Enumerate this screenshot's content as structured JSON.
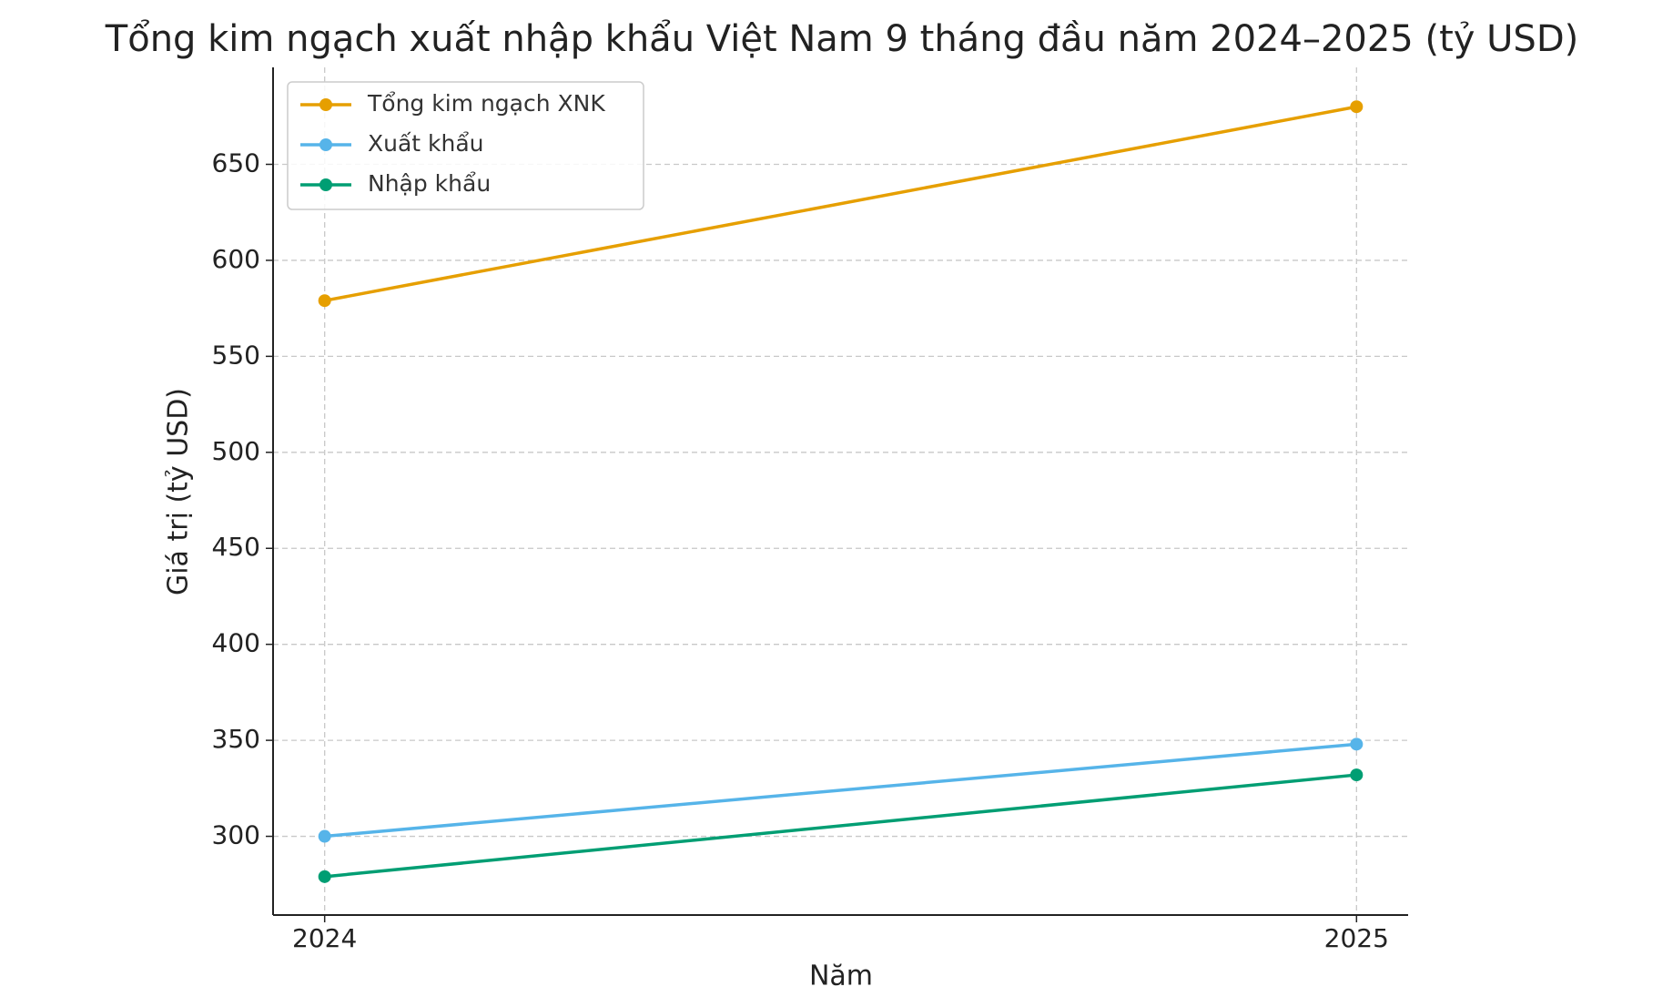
{
  "chart_data": {
    "type": "line",
    "title": "Tổng kim ngạch xuất nhập khẩu Việt Nam 9 tháng đầu năm 2024–2025 (tỷ USD)",
    "xlabel": "Năm",
    "ylabel": "Giá trị (tỷ USD)",
    "x": [
      2024,
      2025
    ],
    "series": [
      {
        "name": "Tổng kim ngạch XNK",
        "color": "#E69F00",
        "values": [
          579,
          680
        ]
      },
      {
        "name": "Xuất khẩu",
        "color": "#56B4E9",
        "values": [
          300,
          348
        ]
      },
      {
        "name": "Nhập khẩu",
        "color": "#009E73",
        "values": [
          279,
          332
        ]
      }
    ],
    "xlim": [
      2023.95,
      2025.05
    ],
    "xticks": [
      2024,
      2025
    ],
    "ylim": [
      259,
      700.5
    ],
    "yticks": [
      300,
      350,
      400,
      450,
      500,
      550,
      600,
      650
    ],
    "grid": true,
    "legend": "upper left",
    "marker": "circle"
  }
}
